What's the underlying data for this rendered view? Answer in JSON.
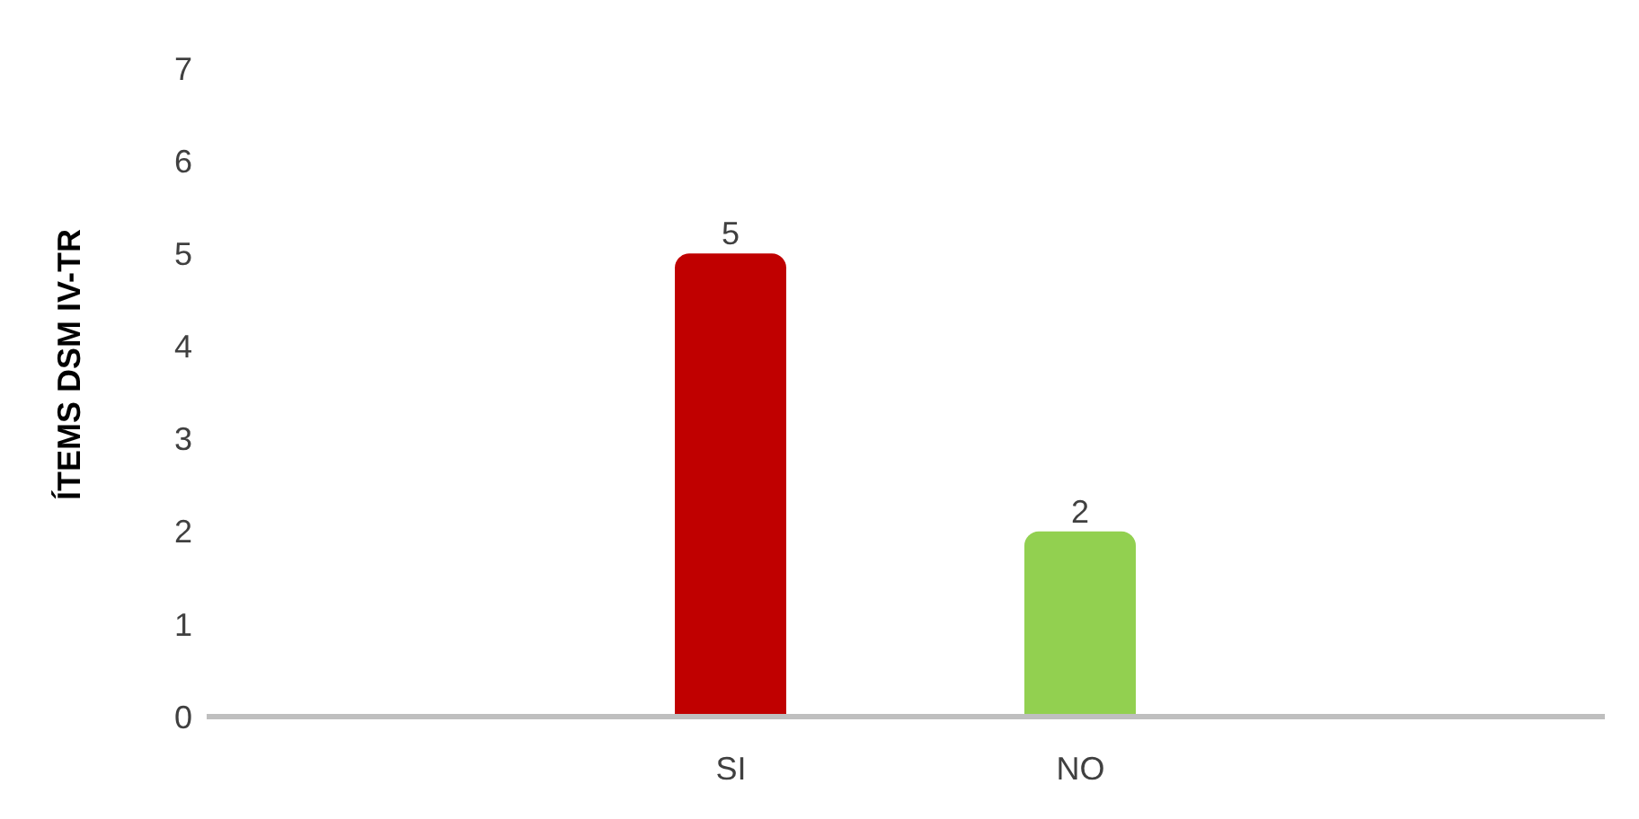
{
  "chart_data": {
    "type": "bar",
    "ylabel": "ÍTEMS DSM IV-TR",
    "categories": [
      null,
      "SI",
      "NO",
      null
    ],
    "values": [
      null,
      5,
      2,
      null
    ],
    "colors": [
      "#c00000",
      "#c00000",
      "#92d050",
      "#92d050"
    ],
    "ylim": [
      0,
      7
    ],
    "yticks": [
      0,
      1,
      2,
      3,
      4,
      5,
      6,
      7
    ],
    "data_labels": true
  }
}
